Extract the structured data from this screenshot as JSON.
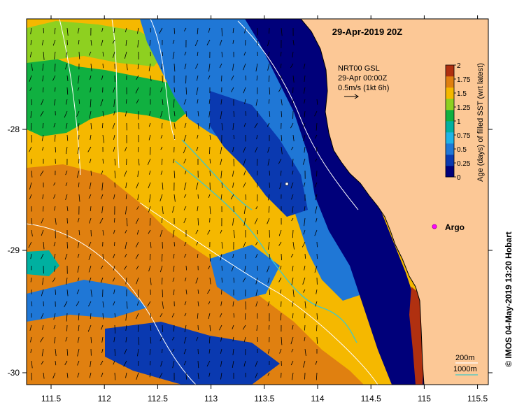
{
  "title": "29-Apr-2019 20Z",
  "current_info": {
    "line1": "NRT00 GSL",
    "line2": "29-Apr 00:00Z",
    "line3": "0.5m/s (1kt 6h)"
  },
  "colorbar": {
    "label": "Age (days) of filled SST (wrt latest)",
    "ticks": [
      "0",
      "0.25",
      "0.5",
      "0.75",
      "1",
      "1.25",
      "1.5",
      "1.75",
      "2"
    ],
    "colors": [
      "#00007a",
      "#0a39b0",
      "#1f77d6",
      "#1eb3e6",
      "#00b0a0",
      "#10b040",
      "#8ed020",
      "#f5b800",
      "#e08010",
      "#b03010"
    ]
  },
  "argo_label": "Argo",
  "isobaths": {
    "shallow": "200m",
    "deep": "1000m",
    "shallow_color": "#ffffff",
    "deep_color": "#40c8c8"
  },
  "credit": "© IMOS 04-May-2019 13:20 Hobart",
  "axes": {
    "x_ticks": [
      "111.5",
      "112",
      "112.5",
      "113",
      "113.5",
      "114",
      "114.5",
      "115",
      "115.5"
    ],
    "y_ticks": [
      "-28",
      "-29",
      "-30"
    ]
  },
  "land_color": "#fcc896"
}
